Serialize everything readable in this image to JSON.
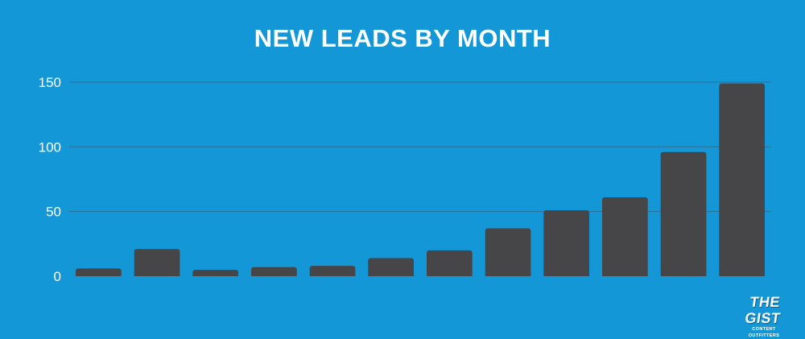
{
  "chart_data": {
    "type": "bar",
    "title": "NEW LEADS BY MONTH",
    "xlabel": "",
    "ylabel": "",
    "categories": [
      "",
      "",
      "",
      "",
      "",
      "",
      "",
      "",
      "",
      "",
      "",
      ""
    ],
    "values": [
      6,
      21,
      5,
      7,
      8,
      14,
      20,
      37,
      51,
      61,
      96,
      149
    ],
    "ylim": [
      0,
      150
    ],
    "yticks": [
      "0",
      "50",
      "100",
      "150"
    ],
    "grid": true,
    "colors": {
      "background": "#1497d6",
      "bar": "#464648",
      "grid": "#2a6f99",
      "text": "#ffffff"
    }
  },
  "brand": {
    "name": "THE GIST",
    "tagline": "CONTENT OUTFITTERS"
  }
}
